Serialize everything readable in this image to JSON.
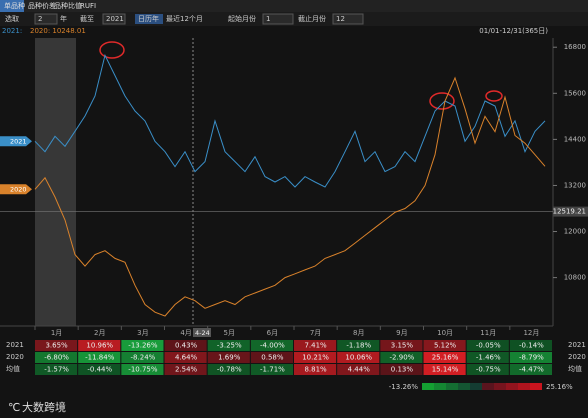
{
  "toolbar": {
    "tabs": [
      "单品种",
      "品种价差",
      "品种比值",
      "RUFI"
    ]
  },
  "controls": {
    "select": "选取",
    "years": "2",
    "year_unit": "年",
    "until": "截至",
    "until_year": "2021",
    "calendar": "日历年",
    "recent": "最近12个月",
    "start_label": "起始月份",
    "start": "1",
    "end_label": "截止月份",
    "end": "12"
  },
  "info": {
    "left_2021": "2021:",
    "left_2020": "2020: 10248.01",
    "range": "01/01-12/31(365日)"
  },
  "chart": {
    "type": "line",
    "ylim": [
      9540,
      17040
    ],
    "yticks": [
      16800,
      15600,
      14400,
      13200,
      12000,
      10800
    ],
    "months": [
      "1月",
      "2月",
      "3月",
      "4月",
      "5月",
      "6月",
      "7月",
      "8月",
      "9月",
      "10月",
      "11月",
      "12月"
    ],
    "cursor_label": "4-24",
    "last_price": {
      "value": 12519.21,
      "label": "12519.21"
    },
    "series": [
      {
        "name": "2021",
        "color": "#3a8fc8",
        "values": [
          14350,
          14080,
          14480,
          14220,
          14610,
          15010,
          15530,
          16590,
          16060,
          15530,
          15140,
          14880,
          14350,
          14080,
          13690,
          14080,
          13560,
          13820,
          14880,
          14080,
          13820,
          13560,
          13950,
          13430,
          13290,
          13430,
          13160,
          13430,
          13290,
          13160,
          13560,
          14080,
          14610,
          13820,
          14080,
          13560,
          13690,
          14080,
          13820,
          14480,
          15140,
          15400,
          15270,
          14350,
          14740,
          15400,
          15270,
          14480,
          14880,
          14080,
          14610,
          14880
        ]
      },
      {
        "name": "2020",
        "color": "#d9822b",
        "values": [
          13100,
          13400,
          12900,
          12300,
          11400,
          11100,
          11400,
          11500,
          11300,
          11200,
          10600,
          10100,
          9900,
          9800,
          10100,
          10300,
          10200,
          10000,
          10100,
          10200,
          10100,
          10300,
          10400,
          10500,
          10600,
          10800,
          10900,
          11000,
          11100,
          11300,
          11400,
          11500,
          11700,
          11900,
          12100,
          12300,
          12500,
          12600,
          12800,
          13200,
          14000,
          15400,
          16000,
          15200,
          14300,
          15000,
          14600,
          15500,
          14500,
          14300,
          14000,
          13700
        ]
      }
    ]
  },
  "table": {
    "rows": [
      {
        "label": "2021",
        "cells": [
          "3.65%",
          "10.96%",
          "-13.26%",
          "0.43%",
          "-3.25%",
          "-4.00%",
          "7.41%",
          "-1.18%",
          "3.15%",
          "5.12%",
          "-0.05%",
          "-0.14%"
        ]
      },
      {
        "label": "2020",
        "cells": [
          "-6.80%",
          "-11.84%",
          "-8.24%",
          "4.64%",
          "1.69%",
          "0.58%",
          "10.21%",
          "10.06%",
          "-2.90%",
          "25.16%",
          "-1.46%",
          "-8.79%"
        ]
      },
      {
        "label": "均值",
        "cells": [
          "-1.57%",
          "-0.44%",
          "-10.75%",
          "2.54%",
          "-0.78%",
          "-1.71%",
          "8.81%",
          "4.44%",
          "0.13%",
          "15.14%",
          "-0.75%",
          "-4.47%"
        ]
      }
    ],
    "scale_min": "-13.26%",
    "scale_max": "25.16%"
  },
  "watermark": "大数跨境"
}
